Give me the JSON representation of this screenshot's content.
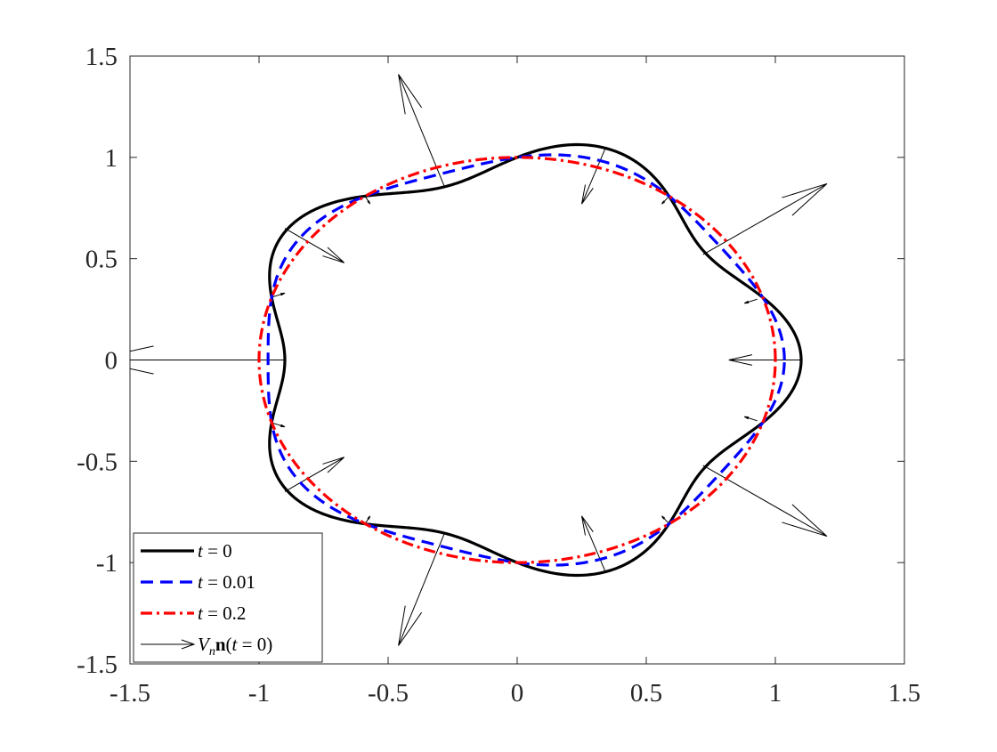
{
  "chart_data": {
    "type": "line",
    "title": "",
    "xlabel": "",
    "ylabel": "",
    "xlim": [
      -1.5,
      1.5
    ],
    "ylim": [
      -1.5,
      1.5
    ],
    "x_ticks": [
      -1.5,
      -1,
      -0.5,
      0,
      0.5,
      1,
      1.5
    ],
    "y_ticks": [
      -1.5,
      -1,
      -0.5,
      0,
      0.5,
      1,
      1.5
    ],
    "x_tick_labels": [
      "-1.5",
      "-1",
      "-0.5",
      "0",
      "0.5",
      "1",
      "1.5"
    ],
    "y_tick_labels": [
      "-1.5",
      "-1",
      "-0.5",
      "0",
      "0.5",
      "1",
      "1.5"
    ],
    "grid": false,
    "legend_position": "bottom-left",
    "series": [
      {
        "name": "t = 0",
        "style": "solid",
        "color": "#000000",
        "shape": "polar",
        "r_mean": 1.0,
        "amplitude": 0.1,
        "mode": 5,
        "phase": 0
      },
      {
        "name": "t = 0.01",
        "style": "dashed",
        "color": "#0000ff",
        "shape": "polar",
        "r_mean": 1.0,
        "amplitude": 0.035,
        "mode": 5,
        "phase": 0
      },
      {
        "name": "t = 0.2",
        "style": "dash-dot",
        "color": "#ff0000",
        "shape": "polar",
        "r_mean": 1.0,
        "amplitude": 0.0,
        "mode": 5,
        "phase": 0
      },
      {
        "name": "V_n n(t = 0)",
        "style": "quiver",
        "color": "#000000",
        "arrows": [
          {
            "x": 1.1,
            "y": 0.0,
            "u": -0.28,
            "v": 0.0
          },
          {
            "x": 0.93,
            "y": 0.3,
            "u": -0.05,
            "v": -0.02
          },
          {
            "x": 0.72,
            "y": 0.52,
            "u": 0.48,
            "v": 0.35
          },
          {
            "x": 0.59,
            "y": 0.81,
            "u": -0.03,
            "v": -0.04
          },
          {
            "x": 0.34,
            "y": 1.04,
            "u": -0.09,
            "v": -0.27
          },
          {
            "x": 0.0,
            "y": 1.0,
            "u": 0.0,
            "v": 0.0
          },
          {
            "x": -0.28,
            "y": 0.85,
            "u": -0.18,
            "v": 0.56
          },
          {
            "x": -0.59,
            "y": 0.81,
            "u": 0.02,
            "v": -0.04
          },
          {
            "x": -0.9,
            "y": 0.65,
            "u": 0.23,
            "v": -0.17
          },
          {
            "x": -0.95,
            "y": 0.31,
            "u": 0.05,
            "v": 0.02
          },
          {
            "x": -0.9,
            "y": 0.0,
            "u": -0.75,
            "v": 0.0
          },
          {
            "x": -0.95,
            "y": -0.31,
            "u": 0.05,
            "v": -0.02
          },
          {
            "x": -0.9,
            "y": -0.65,
            "u": 0.23,
            "v": 0.17
          },
          {
            "x": -0.59,
            "y": -0.81,
            "u": 0.02,
            "v": 0.04
          },
          {
            "x": -0.28,
            "y": -0.85,
            "u": -0.18,
            "v": -0.56
          },
          {
            "x": 0.0,
            "y": -1.0,
            "u": 0.0,
            "v": 0.0
          },
          {
            "x": 0.34,
            "y": -1.04,
            "u": -0.09,
            "v": 0.27
          },
          {
            "x": 0.59,
            "y": -0.81,
            "u": -0.03,
            "v": 0.04
          },
          {
            "x": 0.72,
            "y": -0.52,
            "u": 0.48,
            "v": -0.35
          },
          {
            "x": 0.93,
            "y": -0.3,
            "u": -0.05,
            "v": 0.02
          }
        ]
      }
    ]
  }
}
